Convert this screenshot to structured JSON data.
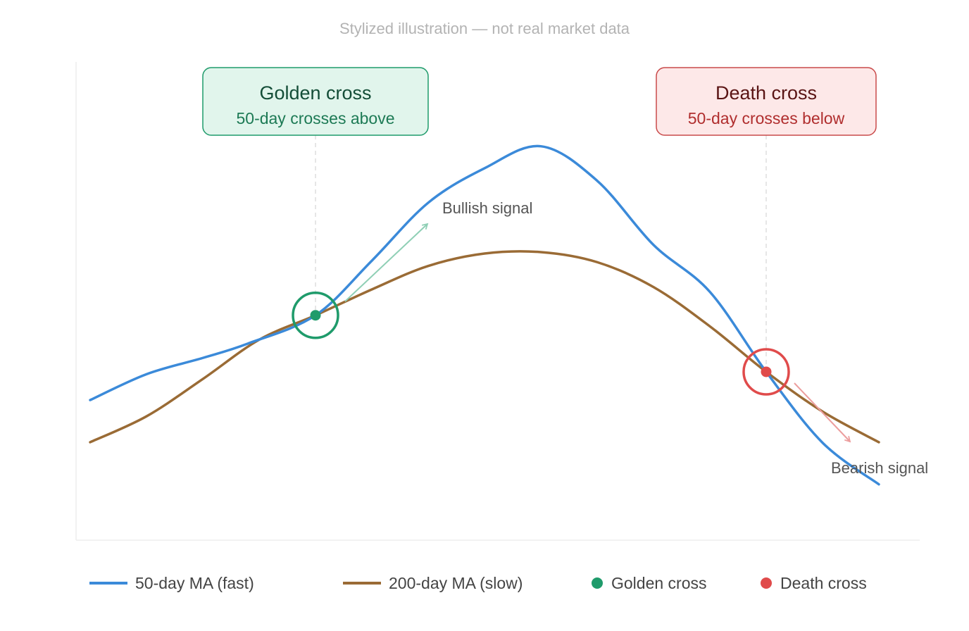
{
  "subtitle": "Stylized illustration — not real market data",
  "colors": {
    "fast": "#3b8ad9",
    "slow": "#9a6b35",
    "golden": "#1f9b6b",
    "death": "#e04b4b",
    "golden_box_fill": "#e1f5ec",
    "golden_box_stroke": "#1f9b6b",
    "golden_title": "#134d37",
    "golden_sub": "#1d7a55",
    "death_box_fill": "#fde8e8",
    "death_box_stroke": "#c94a4a",
    "death_title": "#5a1414",
    "death_sub": "#b02e2e"
  },
  "callouts": {
    "golden": {
      "title": "Golden cross",
      "subtitle": "50-day crosses above"
    },
    "death": {
      "title": "Death cross",
      "subtitle": "50-day crosses below"
    }
  },
  "signals": {
    "bullish": "Bullish signal",
    "bearish": "Bearish signal"
  },
  "legend": {
    "fast": "50-day MA (fast)",
    "slow": "200-day MA (slow)",
    "golden": "Golden cross",
    "death": "Death cross"
  },
  "chart_data": {
    "type": "line",
    "xlim": [
      0,
      8
    ],
    "ylim": [
      0,
      100
    ],
    "grid": false,
    "legend": "bottom",
    "series": [
      {
        "name": "50-day MA (fast)",
        "x": [
          0,
          1,
          2,
          3,
          4,
          5,
          6,
          7,
          7.35
        ],
        "y": [
          29.4,
          38.2,
          47.1,
          70.6,
          82.4,
          61.8,
          35.3,
          11.8,
          11.8
        ],
        "points": [
          [
            0,
            29.4
          ],
          [
            0.5,
            34.8
          ],
          [
            1,
            38.2
          ],
          [
            1.4,
            41.2
          ],
          [
            2,
            47.1
          ],
          [
            2.5,
            58.5
          ],
          [
            3,
            70.6
          ],
          [
            3.5,
            77.8
          ],
          [
            4,
            82.4
          ],
          [
            4.5,
            75.2
          ],
          [
            5,
            61.8
          ],
          [
            5.5,
            52.0
          ],
          [
            6,
            35.3
          ],
          [
            6.5,
            20.5
          ],
          [
            7,
            11.8
          ]
        ]
      },
      {
        "name": "200-day MA (slow)",
        "points": [
          [
            0,
            20.6
          ],
          [
            0.5,
            26.0
          ],
          [
            1,
            33.8
          ],
          [
            1.5,
            42.0
          ],
          [
            2,
            47.1
          ],
          [
            2.5,
            52.5
          ],
          [
            3,
            57.4
          ],
          [
            3.5,
            60.0
          ],
          [
            4,
            60.3
          ],
          [
            4.5,
            58.2
          ],
          [
            5,
            53.0
          ],
          [
            5.5,
            44.8
          ],
          [
            6,
            35.3
          ],
          [
            6.5,
            27.0
          ],
          [
            7,
            20.6
          ]
        ]
      }
    ],
    "crosses": [
      {
        "type": "golden",
        "x": 2,
        "y": 47.1
      },
      {
        "type": "death",
        "x": 6,
        "y": 35.3
      }
    ]
  }
}
